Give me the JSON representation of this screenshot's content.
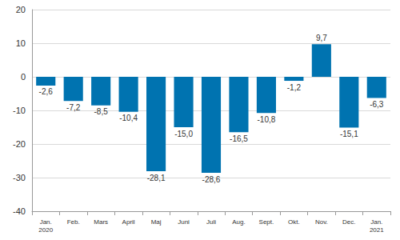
{
  "chart_data": {
    "type": "bar",
    "categories": [
      "Jan.\n2020",
      "Feb.",
      "Mars",
      "April",
      "Maj",
      "Juni",
      "Juli",
      "Aug.",
      "Sept.",
      "Okt.",
      "Nov.",
      "Dec.",
      "Jan.\n2021"
    ],
    "values": [
      -2.6,
      -7.2,
      -8.5,
      -10.4,
      -28.1,
      -15.0,
      -28.6,
      -16.5,
      -10.8,
      -1.2,
      9.7,
      -15.1,
      -6.3
    ],
    "value_labels": [
      "-2,6",
      "-7,2",
      "-8,5",
      "-10,4",
      "-28,1",
      "-15,0",
      "-28,6",
      "-16,5",
      "-10,8",
      "-1,2",
      "9,7",
      "-15,1",
      "-6,3"
    ],
    "color": "#0073b0",
    "ylim": [
      -40,
      20
    ],
    "yticks": [
      -40,
      -30,
      -20,
      -10,
      0,
      10,
      20
    ],
    "grid": true,
    "data_labels": true
  }
}
